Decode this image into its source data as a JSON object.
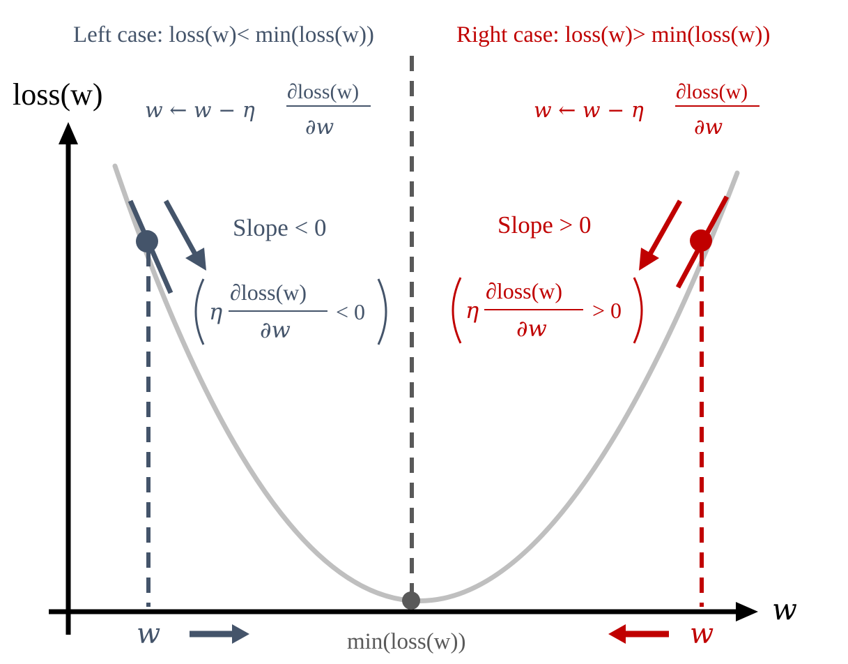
{
  "colors": {
    "left": "#44546A",
    "right": "#C00000",
    "axis": "#000000",
    "curve": "#BFBFBF",
    "center": "#595959"
  },
  "titles": {
    "left_case": "Left case: loss(w)< min(loss(w))",
    "right_case": "Right case: loss(w)> min(loss(w))"
  },
  "axes": {
    "y_label": "loss(w)",
    "x_label": "w"
  },
  "left": {
    "update_rule_lhs": "w ← w − η",
    "update_rule_num": "∂loss(w)",
    "update_rule_den": "∂w",
    "slope_label": "Slope < 0",
    "gradient_eta": "η",
    "gradient_num": "∂loss(w)",
    "gradient_den": "∂w",
    "gradient_cmp": "< 0",
    "w_label": "w"
  },
  "right": {
    "update_rule_lhs": "w ← w − η",
    "update_rule_num": "∂loss(w)",
    "update_rule_den": "∂w",
    "slope_label": "Slope > 0",
    "gradient_eta": "η",
    "gradient_num": "∂loss(w)",
    "gradient_den": "∂w",
    "gradient_cmp": "> 0",
    "w_label": "w"
  },
  "minimum": {
    "label": "min(loss(w))"
  }
}
